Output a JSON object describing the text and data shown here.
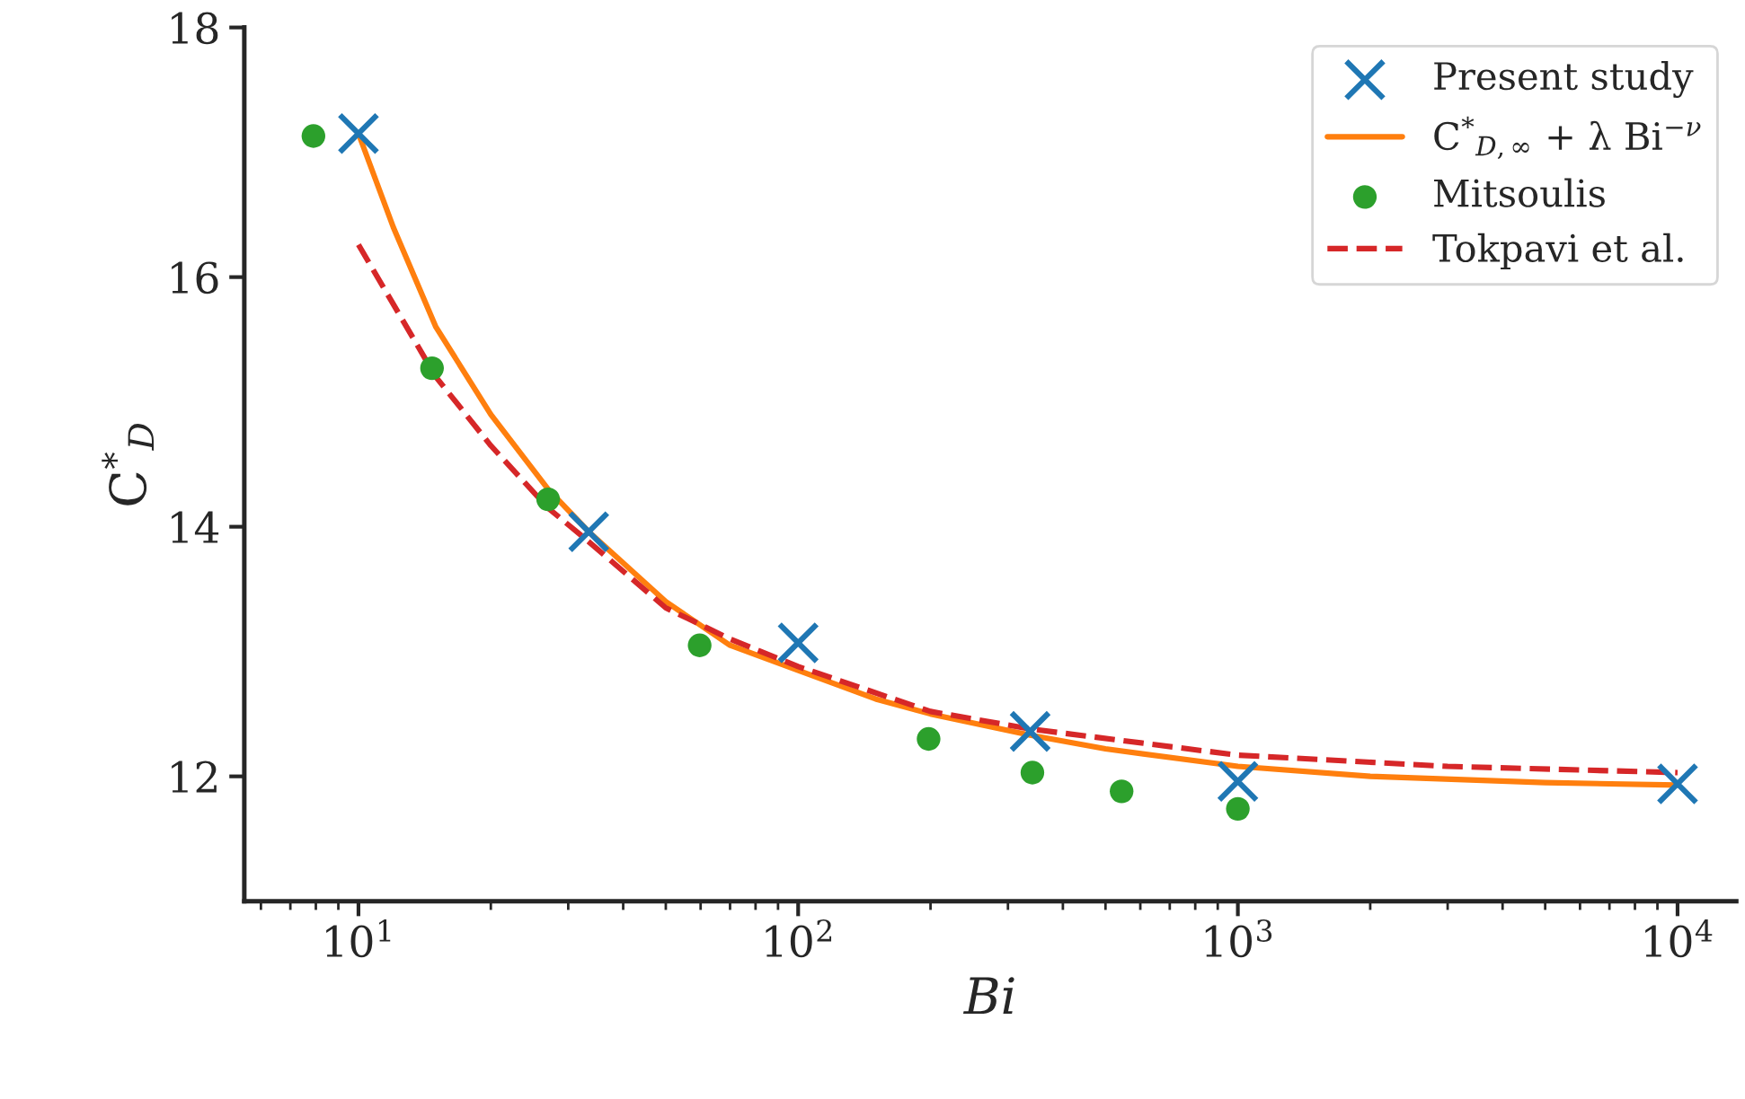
{
  "chart_data": {
    "type": "line",
    "xlabel": "Bi",
    "ylabel": "C$^{*}$$_{D}$",
    "log": "x",
    "xlim": [
      5.5,
      13600
    ],
    "ylim": [
      11.0,
      18.0
    ],
    "xticks": [
      {
        "value": 10,
        "label": "10$^{1}$"
      },
      {
        "value": 100,
        "label": "10$^{2}$"
      },
      {
        "value": 1000,
        "label": "10$^{3}$"
      },
      {
        "value": 10000,
        "label": "10$^{4}$"
      }
    ],
    "yticks": [
      12,
      14,
      16,
      18
    ],
    "grid": false,
    "legend": "top right",
    "series": [
      {
        "name": "Present study",
        "type": "scatter",
        "marker": "cross",
        "color": "#1f77b4",
        "x": [
          10,
          33.4,
          100,
          337,
          1000,
          10000
        ],
        "values": [
          17.15,
          13.96,
          13.07,
          12.36,
          11.96,
          11.94
        ]
      },
      {
        "name": "C$^{*}$$_{D,∞}$ + λ Bi$^{−ν}$",
        "line_style": "solid",
        "color": "#ff7f0e",
        "x": [
          10,
          12,
          15,
          20,
          27,
          33.4,
          50,
          70,
          100,
          150,
          200,
          337,
          500,
          1000,
          2000,
          5000,
          10000
        ],
        "values": [
          17.15,
          16.4,
          15.6,
          14.9,
          14.3,
          13.96,
          13.4,
          13.05,
          12.85,
          12.62,
          12.5,
          12.33,
          12.22,
          12.08,
          12.0,
          11.95,
          11.93
        ]
      },
      {
        "name": "Mitsoulis",
        "type": "scatter",
        "marker": "circle",
        "color": "#2ca02c",
        "x": [
          7.9,
          14.7,
          27,
          59.7,
          198,
          341,
          544,
          1000
        ],
        "values": [
          17.13,
          15.27,
          14.22,
          13.05,
          12.3,
          12.03,
          11.88,
          11.74
        ]
      },
      {
        "name": "Tokpavi et al.",
        "line_style": "dashed",
        "color": "#d62728",
        "x": [
          10,
          15,
          20,
          27,
          33.4,
          50,
          70,
          100,
          200,
          337,
          1000,
          3000,
          10000
        ],
        "values": [
          16.26,
          15.2,
          14.65,
          14.15,
          13.88,
          13.35,
          13.1,
          12.88,
          12.52,
          12.38,
          12.17,
          12.08,
          12.03
        ]
      }
    ]
  }
}
